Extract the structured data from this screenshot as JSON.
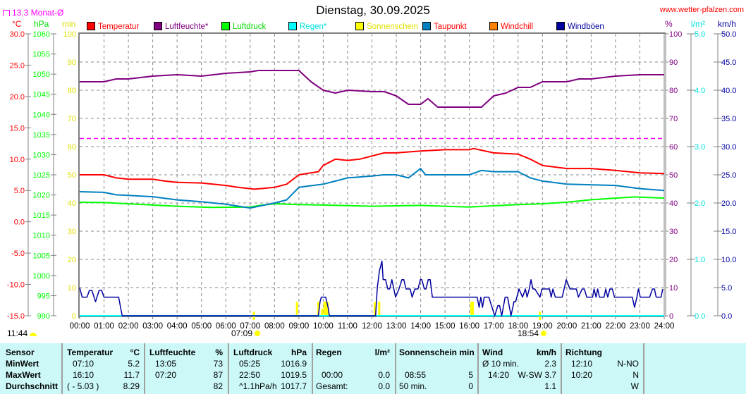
{
  "header": {
    "title": "Dienstag, 30.09.2025",
    "site": "www.wetter-pfalzen.com",
    "monthly_avg": "13.3 Monat-Ø"
  },
  "units": {
    "celsius": "°C",
    "hpa": "hPa",
    "min": "min",
    "percent": "%",
    "rain": "l/m²",
    "kmh": "km/h"
  },
  "legend": [
    {
      "label": "Temperatur",
      "color": "#ff0000",
      "text_color": "#ff0000"
    },
    {
      "label": "Luftfeuchte*",
      "color": "#800080",
      "text_color": "#800080"
    },
    {
      "label": "Luftdruck",
      "color": "#00ff00",
      "text_color": "#00dd00"
    },
    {
      "label": "Regen*",
      "color": "#00ffff",
      "text_color": "#00e0e0"
    },
    {
      "label": "Sonnenschein",
      "color": "#ffff00",
      "text_color": "#e0e000"
    },
    {
      "label": "Taupunkt",
      "color": "#0080c0",
      "text_color": "#ff0000"
    },
    {
      "label": "Windchill",
      "color": "#ff8000",
      "text_color": "#ff0000"
    },
    {
      "label": "Windböen",
      "color": "#0000a0",
      "text_color": "#0000a0"
    }
  ],
  "astro": {
    "day_length": "11:44",
    "sunrise": "07:09",
    "sunset": "18:54"
  },
  "chart_data": {
    "type": "line",
    "title": "Dienstag, 30.09.2025",
    "x_ticks": [
      "00:00",
      "01:00",
      "02:00",
      "03:00",
      "04:00",
      "05:00",
      "06:00",
      "07:00",
      "08:00",
      "09:00",
      "10:00",
      "11:00",
      "12:00",
      "13:00",
      "14:00",
      "15:00",
      "16:00",
      "17:00",
      "18:00",
      "19:00",
      "20:00",
      "21:00",
      "22:00",
      "23:00",
      "24:00"
    ],
    "xlim": [
      0,
      24
    ],
    "axes": {
      "celsius": {
        "min": -15,
        "max": 30,
        "step": 5,
        "decimals": 1,
        "color": "#ff0000"
      },
      "hpa": {
        "min": 990,
        "max": 1060,
        "step": 5,
        "decimals": 0,
        "color": "#00ff00"
      },
      "min": {
        "min": 0,
        "max": 100,
        "step": 10,
        "decimals": 0,
        "color": "#e0e000"
      },
      "percent": {
        "min": 0,
        "max": 100,
        "step": 10,
        "decimals": 0,
        "color": "#800080"
      },
      "rain": {
        "min": 0,
        "max": 5,
        "step": 1,
        "decimals": 1,
        "color": "#00e0e0"
      },
      "kmh": {
        "min": 0,
        "max": 50,
        "step": 5,
        "decimals": 1,
        "color": "#0000a0"
      }
    },
    "monthly_avg_temp": 13.3,
    "series": [
      {
        "name": "Luftdruck",
        "axis": "hpa",
        "color": "#00ff00",
        "points": [
          [
            0,
            1018.2
          ],
          [
            1,
            1018.1
          ],
          [
            2,
            1017.8
          ],
          [
            3,
            1017.5
          ],
          [
            4,
            1017.2
          ],
          [
            5.4,
            1016.9
          ],
          [
            7,
            1017.0
          ],
          [
            7.5,
            1017.5
          ],
          [
            8,
            1017.8
          ],
          [
            9,
            1017.6
          ],
          [
            10,
            1017.5
          ],
          [
            12,
            1017.2
          ],
          [
            14,
            1017.4
          ],
          [
            15,
            1017.2
          ],
          [
            16,
            1017.0
          ],
          [
            17,
            1017.3
          ],
          [
            18,
            1017.6
          ],
          [
            19,
            1017.8
          ],
          [
            20,
            1018.2
          ],
          [
            21,
            1018.8
          ],
          [
            22,
            1019.2
          ],
          [
            22.8,
            1019.5
          ],
          [
            24,
            1019.2
          ]
        ]
      },
      {
        "name": "Taupunkt",
        "axis": "celsius",
        "color": "#0080c0",
        "points": [
          [
            0,
            4.8
          ],
          [
            1,
            4.7
          ],
          [
            1.5,
            4.3
          ],
          [
            2,
            4.2
          ],
          [
            3,
            4.0
          ],
          [
            4,
            3.5
          ],
          [
            5,
            3.2
          ],
          [
            6,
            2.8
          ],
          [
            7,
            2.2
          ],
          [
            8,
            3.0
          ],
          [
            8.5,
            3.5
          ],
          [
            9,
            5.5
          ],
          [
            10,
            6.0
          ],
          [
            10.5,
            6.5
          ],
          [
            11,
            7.0
          ],
          [
            12,
            7.3
          ],
          [
            12.5,
            7.5
          ],
          [
            13,
            7.5
          ],
          [
            13.5,
            7.0
          ],
          [
            14,
            8.5
          ],
          [
            14.2,
            7.5
          ],
          [
            15,
            7.5
          ],
          [
            16,
            7.5
          ],
          [
            16.5,
            8.2
          ],
          [
            17,
            8.0
          ],
          [
            18,
            8.0
          ],
          [
            18.5,
            7.0
          ],
          [
            19,
            6.5
          ],
          [
            20,
            6.0
          ],
          [
            22,
            5.8
          ],
          [
            23,
            5.3
          ],
          [
            24,
            5.0
          ]
        ]
      },
      {
        "name": "Temperatur",
        "axis": "celsius",
        "color": "#ff0000",
        "points": [
          [
            0,
            7.5
          ],
          [
            1,
            7.5
          ],
          [
            1.5,
            7.0
          ],
          [
            2,
            6.8
          ],
          [
            3,
            6.8
          ],
          [
            3.5,
            6.5
          ],
          [
            4,
            6.3
          ],
          [
            5,
            6.2
          ],
          [
            6,
            5.8
          ],
          [
            6.5,
            5.5
          ],
          [
            7.17,
            5.2
          ],
          [
            8,
            5.5
          ],
          [
            8.5,
            6.0
          ],
          [
            9,
            7.5
          ],
          [
            9.8,
            8.0
          ],
          [
            10,
            9.0
          ],
          [
            10.5,
            10.0
          ],
          [
            11,
            9.8
          ],
          [
            11.5,
            10.0
          ],
          [
            12,
            10.5
          ],
          [
            12.5,
            11.0
          ],
          [
            13,
            11.0
          ],
          [
            14,
            11.3
          ],
          [
            15,
            11.5
          ],
          [
            16,
            11.5
          ],
          [
            16.17,
            11.7
          ],
          [
            17,
            11.0
          ],
          [
            18,
            10.8
          ],
          [
            18.5,
            10.0
          ],
          [
            19,
            9.0
          ],
          [
            20,
            8.5
          ],
          [
            21,
            8.5
          ],
          [
            22,
            8.2
          ],
          [
            23,
            7.8
          ],
          [
            24,
            7.7
          ]
        ]
      },
      {
        "name": "Luftfeuchte",
        "axis": "percent",
        "color": "#800080",
        "points": [
          [
            0,
            83
          ],
          [
            1,
            83
          ],
          [
            1.5,
            84
          ],
          [
            2,
            84
          ],
          [
            3,
            85
          ],
          [
            4,
            85.5
          ],
          [
            5,
            85
          ],
          [
            6,
            86
          ],
          [
            7,
            86.5
          ],
          [
            7.33,
            87
          ],
          [
            9,
            87
          ],
          [
            9.5,
            83
          ],
          [
            10,
            80
          ],
          [
            10.5,
            79
          ],
          [
            11,
            80
          ],
          [
            12,
            79.5
          ],
          [
            12.5,
            79.5
          ],
          [
            13,
            78
          ],
          [
            13.5,
            75
          ],
          [
            14,
            75
          ],
          [
            14.3,
            77
          ],
          [
            14.7,
            74
          ],
          [
            15,
            74
          ],
          [
            16.5,
            74
          ],
          [
            17,
            78
          ],
          [
            17.5,
            79
          ],
          [
            18,
            81
          ],
          [
            18.5,
            81
          ],
          [
            19,
            83
          ],
          [
            20,
            83
          ],
          [
            20.5,
            84
          ],
          [
            21,
            84
          ],
          [
            22,
            85
          ],
          [
            23,
            85.5
          ],
          [
            24,
            85.5
          ]
        ]
      },
      {
        "name": "Regen",
        "axis": "rain",
        "color": "#00ffff",
        "points": [
          [
            0,
            0
          ],
          [
            24,
            0
          ]
        ]
      },
      {
        "name": "Windböen",
        "axis": "kmh",
        "color": "#0000a0",
        "points": [
          [
            0,
            5
          ],
          [
            0.1,
            3.3
          ],
          [
            0.3,
            3.3
          ],
          [
            0.4,
            4.5
          ],
          [
            0.5,
            4.5
          ],
          [
            0.65,
            2.5
          ],
          [
            0.8,
            4.5
          ],
          [
            0.9,
            4.5
          ],
          [
            1.0,
            3.3
          ],
          [
            1.6,
            3.3
          ],
          [
            1.7,
            1
          ],
          [
            1.75,
            0
          ],
          [
            9.8,
            0
          ],
          [
            9.87,
            2.5
          ],
          [
            9.92,
            3.3
          ],
          [
            10.1,
            3.3
          ],
          [
            10.2,
            1.5
          ],
          [
            10.25,
            0
          ],
          [
            12.15,
            0
          ],
          [
            12.22,
            5
          ],
          [
            12.31,
            8
          ],
          [
            12.41,
            9.7
          ],
          [
            12.46,
            6.4
          ],
          [
            12.56,
            6.4
          ],
          [
            12.65,
            4.75
          ],
          [
            12.73,
            4.75
          ],
          [
            12.82,
            6.4
          ],
          [
            12.97,
            3.3
          ],
          [
            13.11,
            4.75
          ],
          [
            13.23,
            6.4
          ],
          [
            13.31,
            6.4
          ],
          [
            13.4,
            4.75
          ],
          [
            13.57,
            4.75
          ],
          [
            13.65,
            3.3
          ],
          [
            13.76,
            4.75
          ],
          [
            13.89,
            4.75
          ],
          [
            13.99,
            6.4
          ],
          [
            14.05,
            6.4
          ],
          [
            14.15,
            4.75
          ],
          [
            14.22,
            4.75
          ],
          [
            14.31,
            6.4
          ],
          [
            14.39,
            6.4
          ],
          [
            14.48,
            3.3
          ],
          [
            16.32,
            3.3
          ],
          [
            16.4,
            1.5
          ],
          [
            16.47,
            3.3
          ],
          [
            16.54,
            1.5
          ],
          [
            16.61,
            3.3
          ],
          [
            16.8,
            3.3
          ],
          [
            17.04,
            0
          ],
          [
            17.17,
            1.8
          ],
          [
            17.24,
            1.8
          ],
          [
            17.33,
            0
          ],
          [
            17.47,
            3.3
          ],
          [
            17.57,
            3.3
          ],
          [
            17.71,
            0
          ],
          [
            17.83,
            2.5
          ],
          [
            17.9,
            2.5
          ],
          [
            18.04,
            4.75
          ],
          [
            18.18,
            3.3
          ],
          [
            18.3,
            4.75
          ],
          [
            18.37,
            3.3
          ],
          [
            18.46,
            4.75
          ],
          [
            18.53,
            6.4
          ],
          [
            18.61,
            4.75
          ],
          [
            18.69,
            4.75
          ],
          [
            18.9,
            3.3
          ],
          [
            18.98,
            4.75
          ],
          [
            19.29,
            4.75
          ],
          [
            19.36,
            3.3
          ],
          [
            19.43,
            4.75
          ],
          [
            19.53,
            3.3
          ],
          [
            19.81,
            3.3
          ],
          [
            19.98,
            6.4
          ],
          [
            20.13,
            4.75
          ],
          [
            20.39,
            4.75
          ],
          [
            20.48,
            3.3
          ],
          [
            20.63,
            4.75
          ],
          [
            20.72,
            4.75
          ],
          [
            20.82,
            3.3
          ],
          [
            21.06,
            3.3
          ],
          [
            21.12,
            4.75
          ],
          [
            21.2,
            3.3
          ],
          [
            21.27,
            4.75
          ],
          [
            21.34,
            3.3
          ],
          [
            21.53,
            3.3
          ],
          [
            21.6,
            4.75
          ],
          [
            21.68,
            3.3
          ],
          [
            21.77,
            4.75
          ],
          [
            21.87,
            4.75
          ],
          [
            21.96,
            3.3
          ],
          [
            22.69,
            3.3
          ],
          [
            22.78,
            1.5
          ],
          [
            22.88,
            3.3
          ],
          [
            22.94,
            4.75
          ],
          [
            23.02,
            3.3
          ],
          [
            23.4,
            3.3
          ],
          [
            23.52,
            4.75
          ],
          [
            23.6,
            4.75
          ],
          [
            23.67,
            3.3
          ],
          [
            23.87,
            3.3
          ],
          [
            23.94,
            4.75
          ]
        ]
      }
    ],
    "sunshine": {
      "axis": "min",
      "color": "#ffff00",
      "bars": [
        [
          8.92,
          5
        ],
        [
          9.8,
          5
        ],
        [
          9.95,
          2.5
        ],
        [
          10.05,
          5
        ],
        [
          10.12,
          5
        ],
        [
          10.18,
          5
        ],
        [
          12.12,
          5
        ],
        [
          12.3,
          5
        ],
        [
          16.08,
          5
        ],
        [
          16.14,
          5
        ]
      ]
    },
    "sun_markers": [
      7.15,
      18.9
    ]
  },
  "table": {
    "headers": [
      {
        "label": "Sensor",
        "unit": ""
      },
      {
        "label": "Temperatur",
        "unit": "°C"
      },
      {
        "label": "Luftfeuchte",
        "unit": "%"
      },
      {
        "label": "Luftdruck",
        "unit": "hPa"
      },
      {
        "label": "Regen",
        "unit": "l/m²"
      },
      {
        "label": "Sonnenschein min",
        "unit": ""
      },
      {
        "label": "Wind",
        "unit": "km/h"
      },
      {
        "label": "Richtung",
        "unit": ""
      }
    ],
    "rows": [
      {
        "label": "MinWert",
        "cells": [
          [
            "07:10",
            "5.2"
          ],
          [
            "13:05",
            "73"
          ],
          [
            "05:25",
            "1016.9"
          ],
          [
            "",
            ""
          ],
          [
            "",
            ""
          ],
          [
            "Ø 10 min.",
            "2.3"
          ],
          [
            "12:10",
            "N-NO"
          ]
        ]
      },
      {
        "label": "MaxWert",
        "cells": [
          [
            "16:10",
            "11.7"
          ],
          [
            "07:20",
            "87"
          ],
          [
            "22:50",
            "1019.5"
          ],
          [
            "00:00",
            "0.0"
          ],
          [
            "08:55",
            "5"
          ],
          [
            "14:20",
            "W-SW 3.7"
          ],
          [
            "10:20",
            "N"
          ]
        ]
      },
      {
        "label": "Durchschnitt",
        "cells": [
          [
            "( - 5.03 )",
            "8.29"
          ],
          [
            "",
            "82"
          ],
          [
            "^1.1hPa/h",
            "1017.7"
          ],
          [
            "Gesamt:",
            "0.0"
          ],
          [
            "50 min.",
            "0"
          ],
          [
            "",
            "1.1"
          ],
          [
            "",
            "W"
          ]
        ]
      }
    ]
  }
}
